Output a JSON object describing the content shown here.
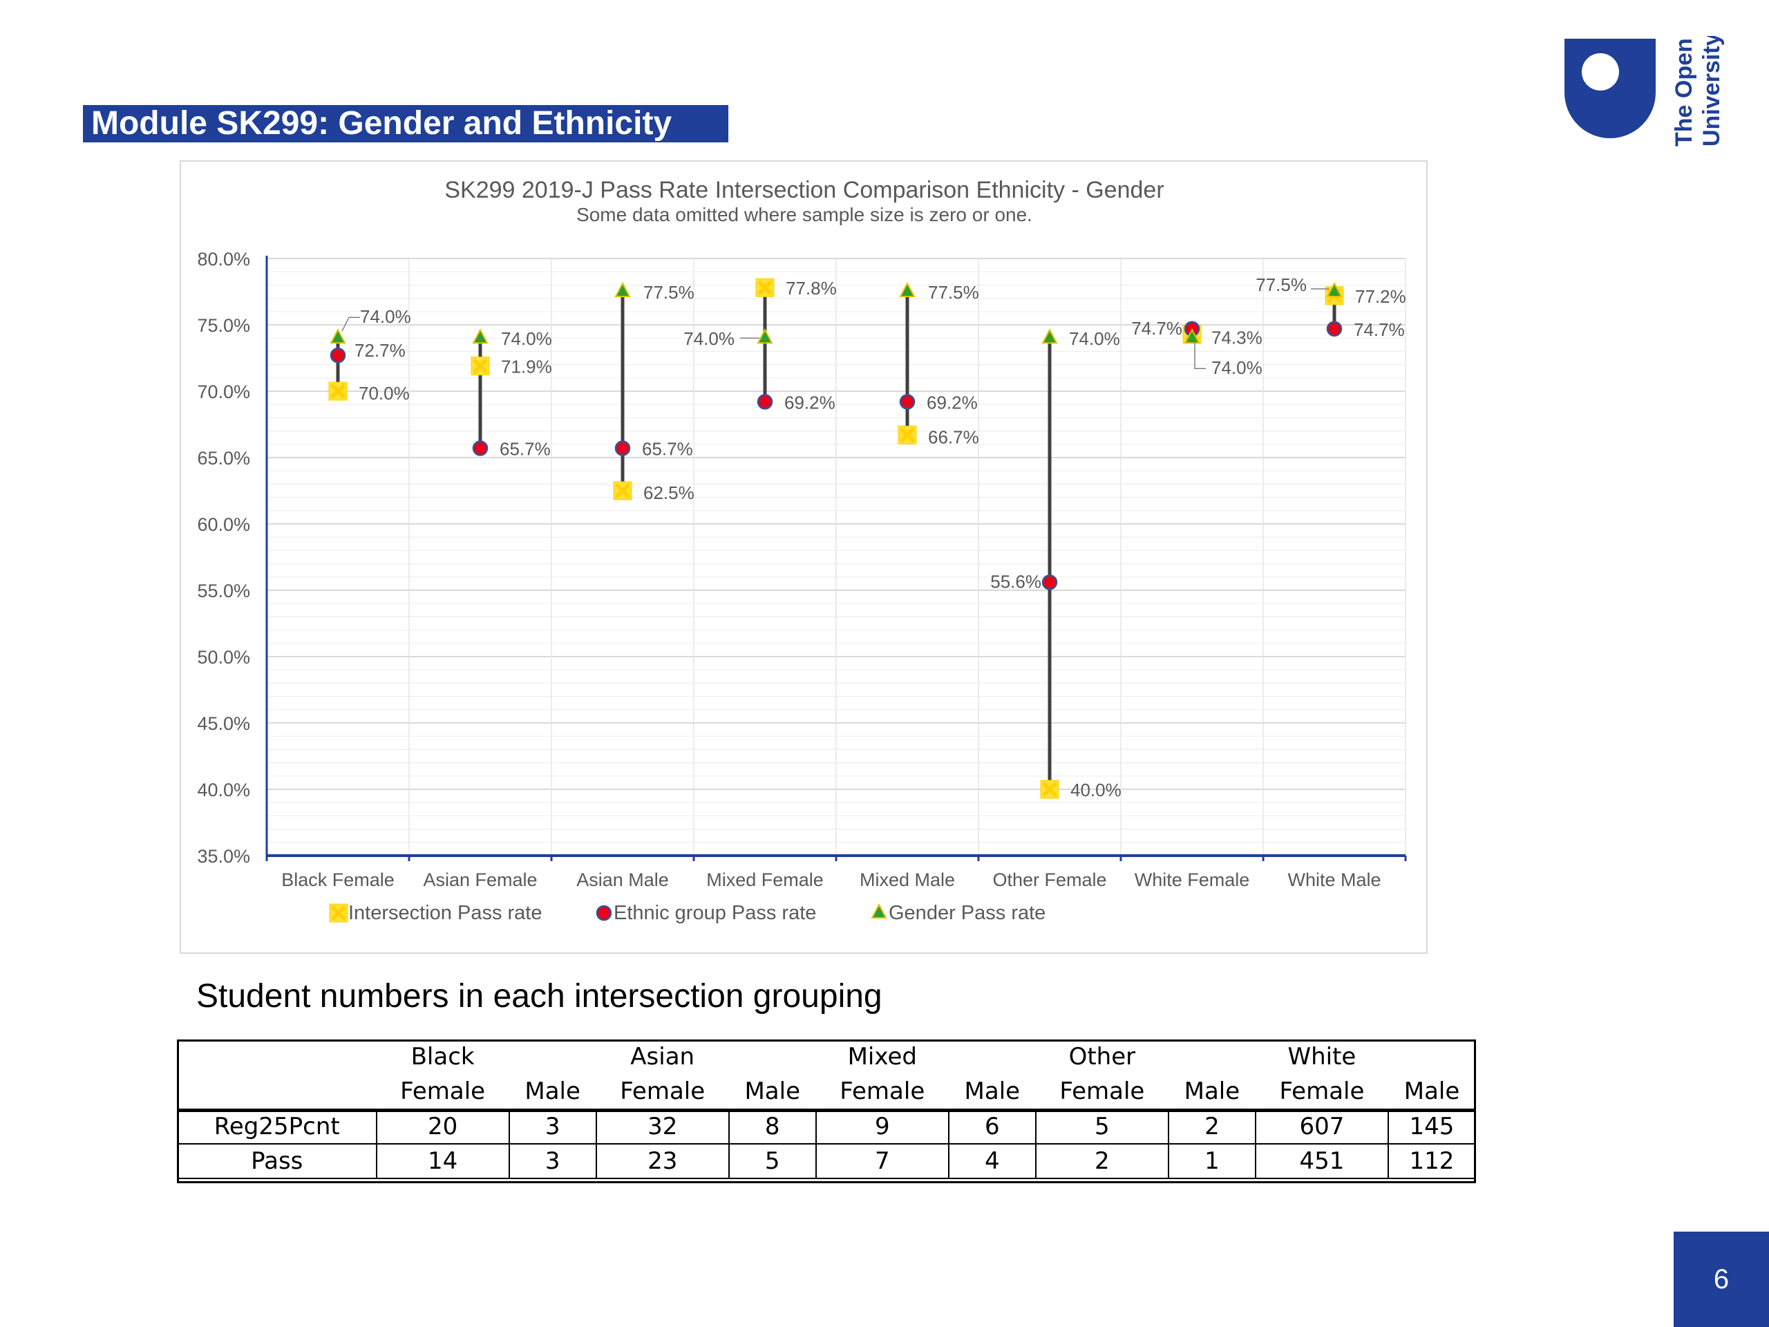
{
  "slide": {
    "title": "Module SK299: Gender and Ethnicity",
    "logo_text_line1": "The Open",
    "logo_text_line2": "University",
    "page_number": "6",
    "brand_color": "#1f3f99"
  },
  "chart_data": {
    "type": "scatter",
    "title": "SK299 2019-J Pass Rate Intersection Comparison Ethnicity - Gender",
    "subtitle": "Some data omitted where sample size is zero or one.",
    "categories": [
      "Black Female",
      "Asian Female",
      "Asian Male",
      "Mixed Female",
      "Mixed Male",
      "Other Female",
      "White Female",
      "White Male"
    ],
    "ylim": [
      35,
      80
    ],
    "ytick_step": 5,
    "yticks": [
      "35.0%",
      "40.0%",
      "45.0%",
      "50.0%",
      "55.0%",
      "60.0%",
      "65.0%",
      "70.0%",
      "75.0%",
      "80.0%"
    ],
    "grid": true,
    "legend_position": "bottom",
    "series": [
      {
        "name": "Intersection Pass rate",
        "marker": "x-square",
        "color": "#ffe033",
        "values": [
          70.0,
          71.9,
          62.5,
          77.8,
          66.7,
          40.0,
          74.3,
          77.2
        ],
        "labels": [
          "70.0%",
          "71.9%",
          "62.5%",
          "77.8%",
          "66.7%",
          "40.0%",
          "74.3%",
          "77.2%"
        ]
      },
      {
        "name": "Ethnic group Pass rate",
        "marker": "circle",
        "color": "#e8001c",
        "values": [
          72.7,
          65.7,
          65.7,
          69.2,
          69.2,
          55.6,
          74.7,
          74.7
        ],
        "labels": [
          "72.7%",
          "65.7%",
          "65.7%",
          "69.2%",
          "69.2%",
          "55.6%",
          "74.7%",
          "74.7%"
        ]
      },
      {
        "name": "Gender Pass rate",
        "marker": "triangle",
        "color": "#2e9e2e",
        "values": [
          74.0,
          74.0,
          77.5,
          74.0,
          77.5,
          74.0,
          74.0,
          77.5
        ],
        "labels": [
          "74.0%",
          "74.0%",
          "77.5%",
          "74.0%",
          "77.5%",
          "74.0%",
          "74.0%",
          "77.5%"
        ]
      }
    ]
  },
  "table": {
    "heading": "Student numbers in each intersection grouping",
    "group_headers": [
      "",
      "Black",
      "",
      "Asian",
      "",
      "Mixed",
      "",
      "Other",
      "",
      "White",
      ""
    ],
    "sub_headers": [
      "",
      "Female",
      "Male",
      "Female",
      "Male",
      "Female",
      "Male",
      "Female",
      "Male",
      "Female",
      "Male"
    ],
    "rows": [
      {
        "label": "Reg25Pcnt",
        "cells": [
          "20",
          "3",
          "32",
          "8",
          "9",
          "6",
          "5",
          "2",
          "607",
          "145"
        ]
      },
      {
        "label": "Pass",
        "cells": [
          "14",
          "3",
          "23",
          "5",
          "7",
          "4",
          "2",
          "1",
          "451",
          "112"
        ]
      }
    ]
  }
}
